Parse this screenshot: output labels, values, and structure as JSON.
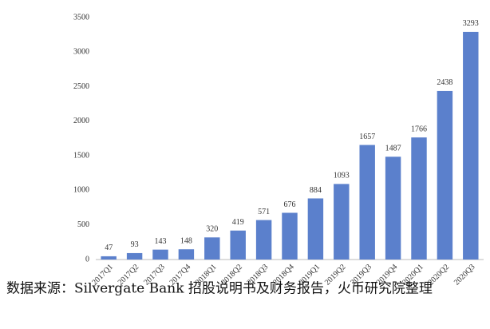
{
  "chart_data": {
    "type": "bar",
    "categories": [
      "2017Q1",
      "2017Q2",
      "2017Q3",
      "2017Q4",
      "2018Q1",
      "2018Q2",
      "2018Q3",
      "2018Q4",
      "2019Q1",
      "2019Q2",
      "2019Q3",
      "2019Q4",
      "2020Q1",
      "2020Q2",
      "2020Q3"
    ],
    "values": [
      47,
      93,
      143,
      148,
      320,
      419,
      571,
      676,
      884,
      1093,
      1657,
      1487,
      1766,
      2438,
      3293
    ],
    "color": "#5b80cc",
    "ylim": [
      0,
      3500
    ],
    "yticks": [
      0,
      500,
      1000,
      1500,
      2000,
      2500,
      3000,
      3500
    ],
    "grid": false,
    "source": "数据来源：Silvergate Bank 招股说明书及财务报告，火币研究院整理"
  }
}
